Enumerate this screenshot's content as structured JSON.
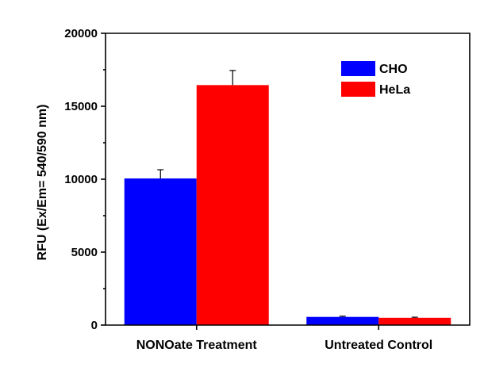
{
  "chart_data": {
    "type": "bar",
    "categories": [
      "NONOate Treatment",
      "Untreated Control"
    ],
    "series": [
      {
        "name": "CHO",
        "color": "#0000ff",
        "values": [
          10050,
          560
        ],
        "errors": [
          600,
          50
        ]
      },
      {
        "name": "HeLa",
        "color": "#ff0000",
        "values": [
          16450,
          500
        ],
        "errors": [
          1000,
          40
        ]
      }
    ],
    "xlabel": "",
    "ylabel": "RFU (Ex/Em= 540/590 nm)",
    "ylim": [
      0,
      20000
    ],
    "yticks": [
      "0",
      "5000",
      "10000",
      "15000",
      "20000"
    ],
    "grid": false,
    "legend_position": "top-right"
  }
}
